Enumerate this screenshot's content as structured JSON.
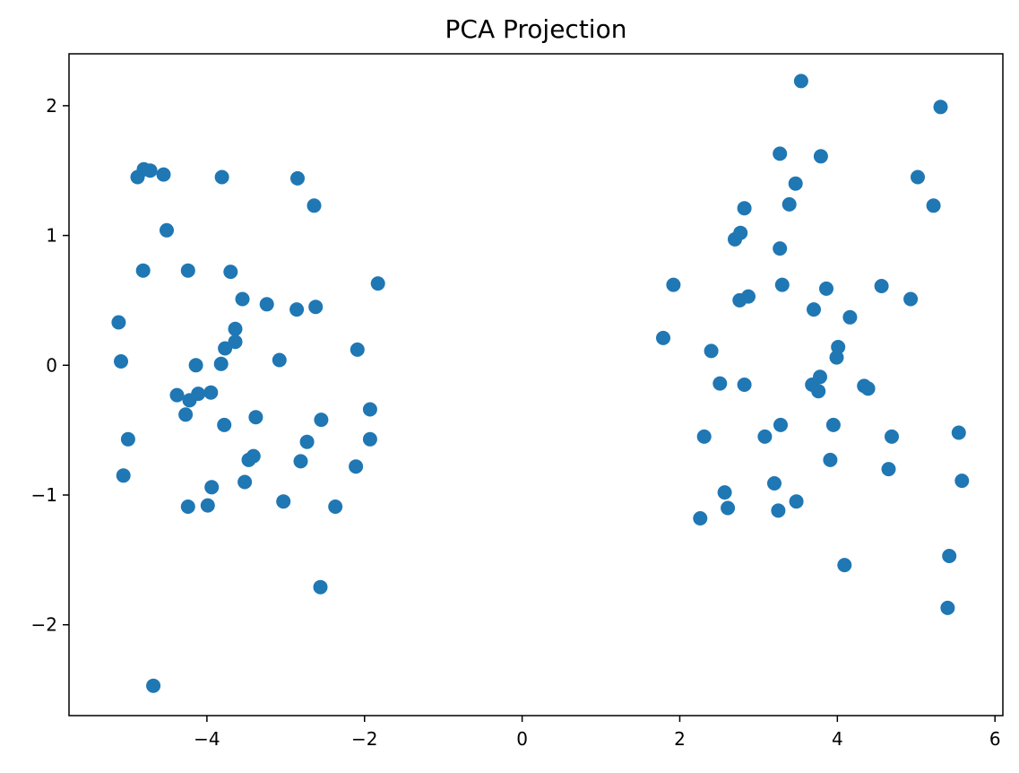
{
  "chart_data": {
    "type": "scatter",
    "title": "PCA Projection",
    "xlabel": "",
    "ylabel": "",
    "xlim": [
      -5.75,
      6.1
    ],
    "ylim": [
      -2.7,
      2.4
    ],
    "xticks": [
      -4,
      -2,
      0,
      2,
      4,
      6
    ],
    "xtick_labels": [
      "−4",
      "−2",
      "0",
      "2",
      "4",
      "6"
    ],
    "yticks": [
      -2,
      -1,
      0,
      1,
      2
    ],
    "ytick_labels": [
      "−2",
      "−1",
      "0",
      "1",
      "2"
    ],
    "grid": false,
    "marker_color": "#1f77b4",
    "points": [
      [
        -5.12,
        0.33
      ],
      [
        -5.09,
        0.03
      ],
      [
        -5.0,
        -0.57
      ],
      [
        -5.06,
        -0.85
      ],
      [
        -4.88,
        1.45
      ],
      [
        -4.8,
        1.51
      ],
      [
        -4.72,
        1.5
      ],
      [
        -4.55,
        1.47
      ],
      [
        -4.51,
        1.04
      ],
      [
        -4.81,
        0.73
      ],
      [
        -4.24,
        0.73
      ],
      [
        -4.38,
        -0.23
      ],
      [
        -4.22,
        -0.27
      ],
      [
        -4.14,
        0.0
      ],
      [
        -4.11,
        -0.22
      ],
      [
        -4.27,
        -0.38
      ],
      [
        -3.95,
        -0.21
      ],
      [
        -4.24,
        -1.09
      ],
      [
        -3.99,
        -1.08
      ],
      [
        -3.94,
        -0.94
      ],
      [
        -4.68,
        -2.47
      ],
      [
        -3.81,
        1.45
      ],
      [
        -3.7,
        0.72
      ],
      [
        -3.55,
        0.51
      ],
      [
        -3.64,
        0.28
      ],
      [
        -3.64,
        0.18
      ],
      [
        -3.77,
        0.13
      ],
      [
        -3.82,
        0.01
      ],
      [
        -3.78,
        -0.46
      ],
      [
        -3.38,
        -0.4
      ],
      [
        -3.47,
        -0.73
      ],
      [
        -3.41,
        -0.7
      ],
      [
        -3.52,
        -0.9
      ],
      [
        -3.24,
        0.47
      ],
      [
        -3.08,
        0.04
      ],
      [
        -2.85,
        1.44
      ],
      [
        -2.86,
        0.43
      ],
      [
        -2.62,
        0.45
      ],
      [
        -2.64,
        1.23
      ],
      [
        -2.73,
        -0.59
      ],
      [
        -2.81,
        -0.74
      ],
      [
        -2.55,
        -0.42
      ],
      [
        -3.03,
        -1.05
      ],
      [
        -2.37,
        -1.09
      ],
      [
        -2.56,
        -1.71
      ],
      [
        -2.09,
        0.12
      ],
      [
        -1.83,
        0.63
      ],
      [
        -1.93,
        -0.34
      ],
      [
        -1.93,
        -0.57
      ],
      [
        -2.11,
        -0.78
      ],
      [
        1.79,
        0.21
      ],
      [
        1.92,
        0.62
      ],
      [
        2.4,
        0.11
      ],
      [
        2.51,
        -0.14
      ],
      [
        2.31,
        -0.55
      ],
      [
        2.57,
        -0.98
      ],
      [
        2.61,
        -1.1
      ],
      [
        2.26,
        -1.18
      ],
      [
        2.7,
        0.97
      ],
      [
        2.77,
        1.02
      ],
      [
        2.82,
        1.21
      ],
      [
        2.76,
        0.5
      ],
      [
        2.87,
        0.53
      ],
      [
        2.82,
        -0.15
      ],
      [
        3.08,
        -0.55
      ],
      [
        3.2,
        -0.91
      ],
      [
        3.25,
        -1.12
      ],
      [
        3.28,
        -0.46
      ],
      [
        3.27,
        1.63
      ],
      [
        3.27,
        0.9
      ],
      [
        3.3,
        0.62
      ],
      [
        3.39,
        1.24
      ],
      [
        3.47,
        1.4
      ],
      [
        3.54,
        2.19
      ],
      [
        3.48,
        -1.05
      ],
      [
        3.7,
        0.43
      ],
      [
        3.68,
        -0.15
      ],
      [
        3.78,
        -0.09
      ],
      [
        3.76,
        -0.2
      ],
      [
        3.79,
        1.61
      ],
      [
        3.86,
        0.59
      ],
      [
        3.95,
        -0.46
      ],
      [
        3.91,
        -0.73
      ],
      [
        3.99,
        0.06
      ],
      [
        4.01,
        0.14
      ],
      [
        4.16,
        0.37
      ],
      [
        4.09,
        -1.54
      ],
      [
        4.34,
        -0.16
      ],
      [
        4.39,
        -0.18
      ],
      [
        4.56,
        0.61
      ],
      [
        4.65,
        -0.8
      ],
      [
        4.69,
        -0.55
      ],
      [
        4.93,
        0.51
      ],
      [
        5.02,
        1.45
      ],
      [
        5.22,
        1.23
      ],
      [
        5.42,
        -1.47
      ],
      [
        5.4,
        -1.87
      ],
      [
        5.54,
        -0.52
      ],
      [
        5.58,
        -0.89
      ],
      [
        5.31,
        1.99
      ]
    ]
  }
}
